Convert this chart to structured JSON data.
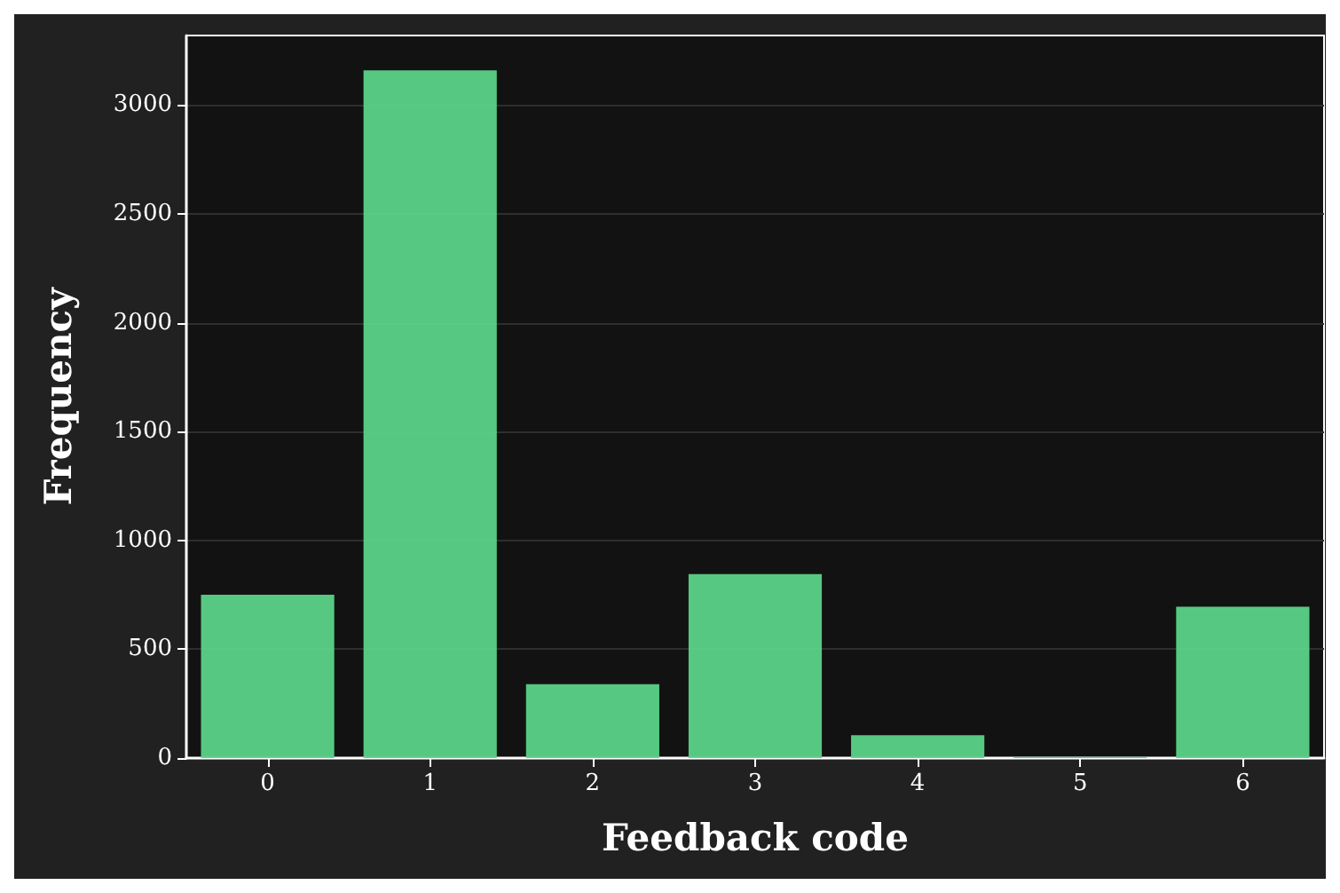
{
  "chart_data": {
    "type": "bar",
    "xlabel": "Feedback code",
    "ylabel": "Frequency",
    "categories": [
      "0",
      "1",
      "2",
      "3",
      "4",
      "5",
      "6"
    ],
    "values": [
      750,
      3160,
      340,
      845,
      105,
      5,
      695
    ],
    "color": "#5cd389",
    "ylim": [
      0,
      3320
    ],
    "yticks": [
      0,
      500,
      1000,
      1500,
      2000,
      2500,
      3000
    ],
    "grid": "y"
  }
}
